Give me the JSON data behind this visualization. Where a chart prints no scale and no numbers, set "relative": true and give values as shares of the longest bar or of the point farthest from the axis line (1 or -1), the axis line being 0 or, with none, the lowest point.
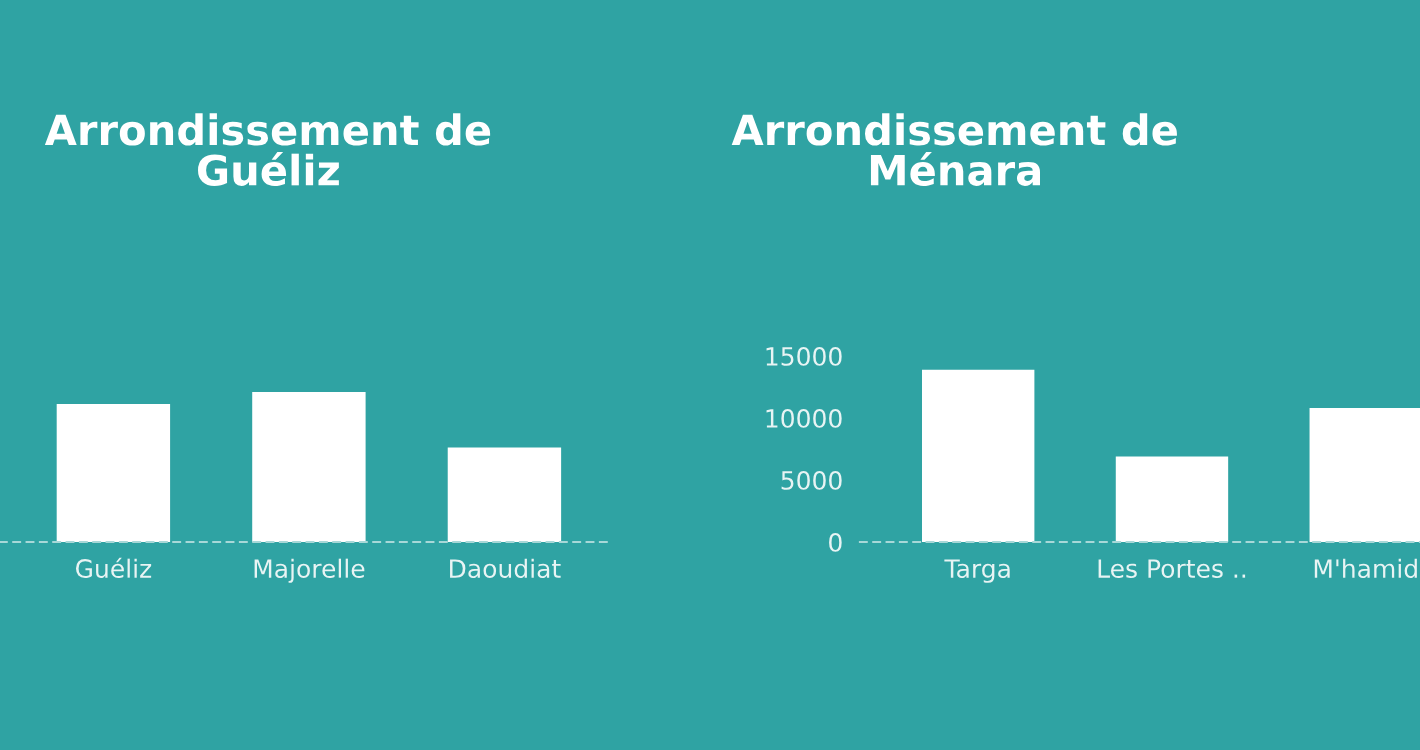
{
  "chart_data": [
    {
      "type": "bar",
      "title": "Arrondissement de\nGuéliz",
      "categories": [
        "Guéliz",
        "Majorelle",
        "Daoudiat"
      ],
      "values": [
        0.92,
        1,
        0.63
      ],
      "color": "#ffffff",
      "relative": true,
      "grid": false,
      "legend": false
    },
    {
      "type": "bar",
      "title": "Arrondissement de\nMénara",
      "categories": [
        "Targa",
        "Les Portes ..",
        "M'hamid"
      ],
      "values": [
        13900,
        6900,
        10800
      ],
      "color": "#ffffff",
      "ylim": [
        0,
        15000
      ],
      "yticks": [
        0,
        5000,
        10000,
        15000
      ],
      "grid": false,
      "legend": false
    }
  ]
}
